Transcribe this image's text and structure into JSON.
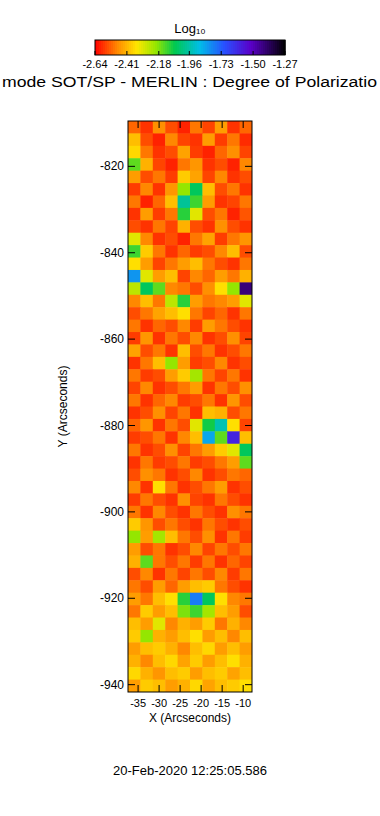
{
  "chart_data": {
    "type": "heatmap",
    "title": "mode SOT/SP - MERLIN : Degree of Polarizatio",
    "x_label": "X (Arcseconds)",
    "y_label": "Y (Arcseconds)",
    "annotations": [
      "20-Feb-2020 12:25:05.586"
    ],
    "xlim": [
      -37.4,
      -7.9
    ],
    "ylim": [
      -941.7,
      -809.5
    ],
    "xticks": [
      -35,
      -30,
      -25,
      -20,
      -15,
      -10
    ],
    "yticks": [
      -820,
      -840,
      -860,
      -880,
      -900,
      -920,
      -940
    ],
    "colorbar": {
      "title": "Log₁₀",
      "range": [
        -2.64,
        -1.27
      ],
      "ticks": [
        -2.64,
        -2.41,
        -2.18,
        -1.96,
        -1.73,
        {
          "value": -1.5,
          "label": "-1.50"
        },
        -1.27
      ]
    },
    "z": [
      [
        -2.52,
        -2.58,
        -2.47,
        -2.55,
        -2.6,
        -2.5,
        -2.56,
        -2.45,
        -2.58,
        -2.52
      ],
      [
        -2.4,
        -2.55,
        -2.6,
        -2.48,
        -2.56,
        -2.58,
        -2.45,
        -2.57,
        -2.5,
        -2.59
      ],
      [
        -2.36,
        -2.5,
        -2.58,
        -2.55,
        -2.44,
        -2.57,
        -2.6,
        -2.52,
        -2.47,
        -2.56
      ],
      [
        -2.15,
        -2.42,
        -2.56,
        -2.6,
        -2.5,
        -2.46,
        -2.58,
        -2.55,
        -2.6,
        -2.48
      ],
      [
        -2.45,
        -2.55,
        -2.5,
        -2.57,
        -2.38,
        -2.44,
        -2.56,
        -2.48,
        -2.58,
        -2.55
      ],
      [
        -2.57,
        -2.48,
        -2.58,
        -2.46,
        -2.2,
        -2.05,
        -2.4,
        -2.55,
        -2.5,
        -2.58
      ],
      [
        -2.5,
        -2.6,
        -2.52,
        -2.4,
        -1.98,
        -2.12,
        -2.45,
        -2.58,
        -2.56,
        -2.5
      ],
      [
        -2.58,
        -2.45,
        -2.57,
        -2.5,
        -2.1,
        -2.3,
        -2.55,
        -2.5,
        -2.6,
        -2.54
      ],
      [
        -2.55,
        -2.58,
        -2.5,
        -2.56,
        -2.42,
        -2.55,
        -2.58,
        -2.47,
        -2.55,
        -2.58
      ],
      [
        -2.3,
        -2.48,
        -2.58,
        -2.55,
        -2.6,
        -2.5,
        -2.44,
        -2.57,
        -2.5,
        -2.46
      ],
      [
        -2.12,
        -2.38,
        -2.5,
        -2.58,
        -2.52,
        -2.57,
        -2.55,
        -2.48,
        -2.4,
        -2.55
      ],
      [
        -2.35,
        -2.45,
        -2.56,
        -2.5,
        -2.45,
        -2.4,
        -2.5,
        -2.55,
        -2.58,
        -2.5
      ],
      [
        -1.82,
        -2.3,
        -2.45,
        -2.4,
        -2.56,
        -2.48,
        -2.52,
        -2.45,
        -2.5,
        -2.42
      ],
      [
        -2.25,
        -2.05,
        -2.15,
        -2.48,
        -2.5,
        -2.55,
        -2.47,
        -2.35,
        -2.2,
        -1.42
      ],
      [
        -2.48,
        -2.4,
        -2.5,
        -2.25,
        -2.1,
        -2.45,
        -2.5,
        -2.48,
        -2.45,
        -2.3
      ],
      [
        -2.55,
        -2.5,
        -2.44,
        -2.4,
        -2.35,
        -2.5,
        -2.56,
        -2.52,
        -2.58,
        -2.5
      ],
      [
        -2.5,
        -2.58,
        -2.52,
        -2.55,
        -2.48,
        -2.57,
        -2.45,
        -2.5,
        -2.55,
        -2.58
      ],
      [
        -2.57,
        -2.46,
        -2.58,
        -2.5,
        -2.55,
        -2.48,
        -2.58,
        -2.55,
        -2.47,
        -2.56
      ],
      [
        -2.44,
        -2.55,
        -2.5,
        -2.58,
        -2.4,
        -2.55,
        -2.5,
        -2.58,
        -2.55,
        -2.5
      ],
      [
        -2.58,
        -2.5,
        -2.4,
        -2.2,
        -2.45,
        -2.57,
        -2.55,
        -2.48,
        -2.58,
        -2.55
      ],
      [
        -2.5,
        -2.57,
        -2.55,
        -2.45,
        -2.38,
        -2.22,
        -2.5,
        -2.56,
        -2.5,
        -2.58
      ],
      [
        -2.56,
        -2.48,
        -2.58,
        -2.55,
        -2.5,
        -2.45,
        -2.58,
        -2.5,
        -2.55,
        -2.47
      ],
      [
        -2.5,
        -2.58,
        -2.52,
        -2.48,
        -2.57,
        -2.55,
        -2.5,
        -2.58,
        -2.46,
        -2.55
      ],
      [
        -2.58,
        -2.55,
        -2.47,
        -2.56,
        -2.5,
        -2.58,
        -2.4,
        -2.42,
        -2.55,
        -2.5
      ],
      [
        -2.52,
        -2.46,
        -2.58,
        -2.5,
        -2.55,
        -2.3,
        -2.08,
        -1.95,
        -2.35,
        -2.56
      ],
      [
        -2.57,
        -2.55,
        -2.5,
        -2.58,
        -2.48,
        -2.4,
        -1.85,
        -2.15,
        -1.6,
        -2.4
      ],
      [
        -2.5,
        -2.58,
        -2.55,
        -2.47,
        -2.56,
        -2.5,
        -2.45,
        -2.38,
        -2.3,
        -2.05
      ],
      [
        -2.58,
        -2.5,
        -2.57,
        -2.55,
        -2.5,
        -2.57,
        -2.55,
        -2.5,
        -2.45,
        -2.15
      ],
      [
        -2.55,
        -2.47,
        -2.5,
        -2.58,
        -2.55,
        -2.48,
        -2.58,
        -2.55,
        -2.5,
        -2.52
      ],
      [
        -2.48,
        -2.58,
        -2.35,
        -2.5,
        -2.58,
        -2.55,
        -2.5,
        -2.45,
        -2.58,
        -2.55
      ],
      [
        -2.57,
        -2.5,
        -2.55,
        -2.58,
        -2.47,
        -2.56,
        -2.58,
        -2.5,
        -2.55,
        -2.58
      ],
      [
        -2.5,
        -2.58,
        -2.48,
        -2.55,
        -2.58,
        -2.5,
        -2.55,
        -2.58,
        -2.47,
        -2.5
      ],
      [
        -2.38,
        -2.46,
        -2.55,
        -2.5,
        -2.55,
        -2.58,
        -2.5,
        -2.55,
        -2.58,
        -2.55
      ],
      [
        -2.2,
        -2.45,
        -2.22,
        -2.4,
        -2.5,
        -2.55,
        -2.47,
        -2.58,
        -2.5,
        -2.57
      ],
      [
        -2.45,
        -2.55,
        -2.5,
        -2.58,
        -2.55,
        -2.48,
        -2.56,
        -2.5,
        -2.55,
        -2.5
      ],
      [
        -2.42,
        -2.15,
        -2.5,
        -2.55,
        -2.5,
        -2.57,
        -2.5,
        -2.58,
        -2.52,
        -2.56
      ],
      [
        -2.55,
        -2.48,
        -2.58,
        -2.5,
        -2.56,
        -2.5,
        -2.55,
        -2.48,
        -2.57,
        -2.5
      ],
      [
        -2.5,
        -2.55,
        -2.45,
        -2.52,
        -2.45,
        -2.4,
        -2.38,
        -2.5,
        -2.55,
        -2.58
      ],
      [
        -2.45,
        -2.5,
        -2.4,
        -2.35,
        -2.1,
        -1.78,
        -2.05,
        -2.35,
        -2.48,
        -2.5
      ],
      [
        -2.5,
        -2.38,
        -2.45,
        -2.4,
        -2.18,
        -2.12,
        -2.22,
        -2.4,
        -2.45,
        -2.55
      ],
      [
        -2.4,
        -2.45,
        -2.3,
        -2.48,
        -2.42,
        -2.45,
        -2.38,
        -2.5,
        -2.42,
        -2.48
      ],
      [
        -2.38,
        -2.2,
        -2.42,
        -2.45,
        -2.4,
        -2.35,
        -2.45,
        -2.4,
        -2.48,
        -2.4
      ],
      [
        -2.45,
        -2.4,
        -2.38,
        -2.42,
        -2.48,
        -2.4,
        -2.36,
        -2.45,
        -2.4,
        -2.45
      ],
      [
        -2.42,
        -2.48,
        -2.4,
        -2.36,
        -2.44,
        -2.38,
        -2.45,
        -2.4,
        -2.35,
        -2.42
      ],
      [
        -2.36,
        -2.42,
        -2.46,
        -2.4,
        -2.38,
        -2.45,
        -2.4,
        -2.38,
        -2.44,
        -2.4
      ],
      [
        -2.45,
        -2.38,
        -2.4,
        -2.45,
        -2.42,
        -2.36,
        -2.44,
        -2.4,
        -2.38,
        -2.35
      ]
    ]
  }
}
